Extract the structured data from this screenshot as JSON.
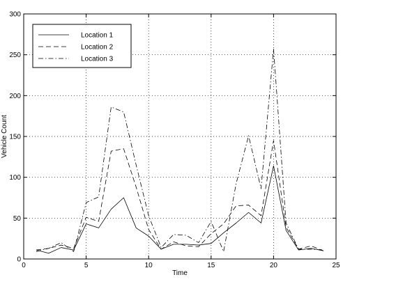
{
  "chart_data": {
    "type": "line",
    "title": "",
    "xlabel": "Time",
    "ylabel": "Vehicle Count",
    "xlim": [
      0,
      25
    ],
    "ylim": [
      0,
      300
    ],
    "xticks": [
      0,
      5,
      10,
      15,
      20,
      25
    ],
    "yticks": [
      0,
      50,
      100,
      150,
      200,
      250,
      300
    ],
    "grid": true,
    "legend_position": "top-left",
    "x": [
      1,
      2,
      3,
      4,
      5,
      6,
      7,
      8,
      9,
      10,
      11,
      12,
      13,
      14,
      15,
      16,
      17,
      18,
      19,
      20,
      21,
      22,
      23,
      24
    ],
    "series": [
      {
        "name": "Location 1",
        "line_style": "solid",
        "values": [
          11,
          7,
          14,
          11,
          43,
          38,
          61,
          75,
          38,
          28,
          12,
          18,
          18,
          17,
          19,
          32,
          44,
          57,
          44,
          114,
          35,
          11,
          13,
          10
        ]
      },
      {
        "name": "Location 2",
        "line_style": "dashed",
        "values": [
          11,
          13,
          17,
          13,
          51,
          46,
          132,
          135,
          88,
          36,
          12,
          21,
          16,
          15,
          31,
          43,
          65,
          66,
          53,
          145,
          39,
          12,
          16,
          10
        ]
      },
      {
        "name": "Location 3",
        "line_style": "dash-dot",
        "values": [
          9,
          13,
          20,
          9,
          69,
          76,
          186,
          180,
          115,
          53,
          14,
          30,
          29,
          20,
          46,
          9,
          92,
          151,
          86,
          257,
          44,
          12,
          12,
          11
        ]
      }
    ]
  }
}
